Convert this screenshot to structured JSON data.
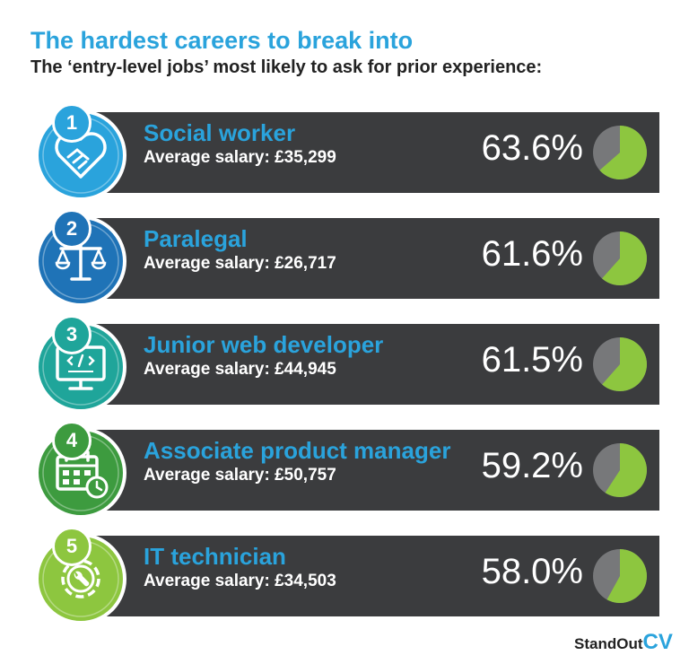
{
  "title": "The hardest careers to break into",
  "subtitle": "The ‘entry-level jobs’ most likely to ask for prior experience:",
  "salary_prefix": "Average salary: ",
  "logo": {
    "main": "StandOut",
    "accent": "CV"
  },
  "colors": {
    "bar": "#3b3c3e",
    "pie_fill": "#8dc63f",
    "pie_rest": "#77787a",
    "title": "#2aa3dc"
  },
  "chart_data": {
    "type": "pie",
    "categories": [
      "Social worker",
      "Paralegal",
      "Junior web developer",
      "Associate product manager",
      "IT technician"
    ],
    "values": [
      63.6,
      61.6,
      61.5,
      59.2,
      58.0
    ],
    "unit": "%",
    "title": "The hardest careers to break into"
  },
  "rows": [
    {
      "rank": "1",
      "name": "Social worker",
      "salary": "£35,299",
      "percent_label": "63.6%",
      "value": 63.6,
      "color": "#2aa3dc",
      "name_color": "#2aa3dc",
      "icon": "handshake-heart-icon"
    },
    {
      "rank": "2",
      "name": "Paralegal",
      "salary": "£26,717",
      "percent_label": "61.6%",
      "value": 61.6,
      "color": "#1f73b7",
      "name_color": "#2aa3dc",
      "icon": "scales-icon"
    },
    {
      "rank": "3",
      "name": "Junior web developer",
      "salary": "£44,945",
      "percent_label": "61.5%",
      "value": 61.5,
      "color": "#1fa59a",
      "name_color": "#2aa3dc",
      "icon": "monitor-code-icon"
    },
    {
      "rank": "4",
      "name": "Associate product manager",
      "salary": "£50,757",
      "percent_label": "59.2%",
      "value": 59.2,
      "color": "#3d9b3f",
      "name_color": "#2aa3dc",
      "icon": "calendar-clock-icon"
    },
    {
      "rank": "5",
      "name": "IT technician",
      "salary": "£34,503",
      "percent_label": "58.0%",
      "value": 58.0,
      "color": "#8dc63f",
      "name_color": "#2aa3dc",
      "icon": "gear-wrench-icon"
    }
  ]
}
